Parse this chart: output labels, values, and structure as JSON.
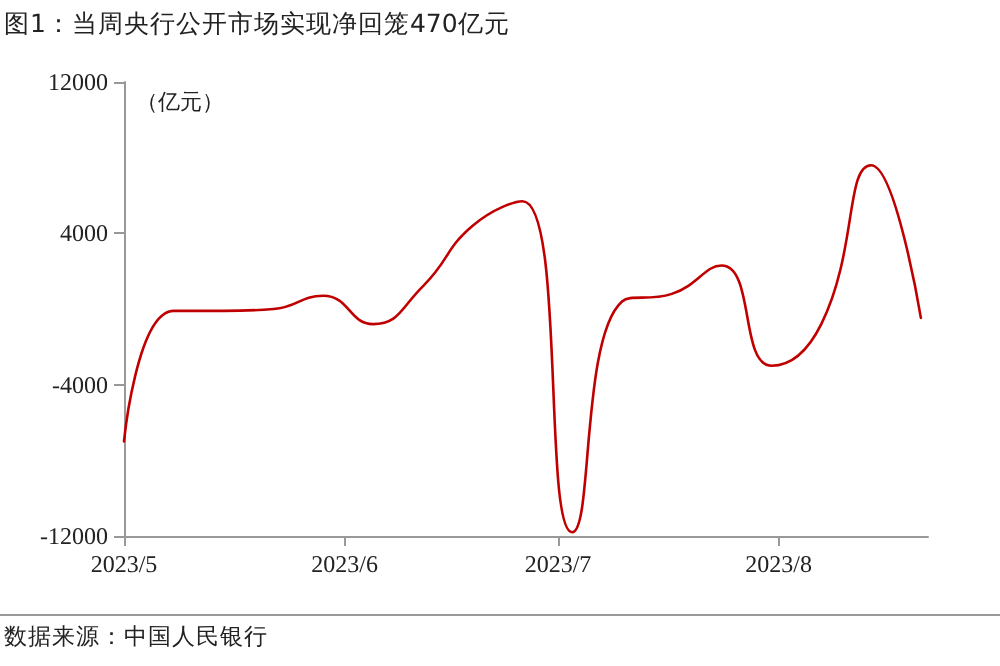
{
  "chart_data": {
    "type": "line",
    "title": "图1：当周央行公开市场实现净回笼470亿元",
    "ylabel": "（亿元）",
    "annotations": [
      "数据来源：中国人民银行"
    ],
    "x": [
      "2023-05-05",
      "2023-05-12",
      "2023-05-19",
      "2023-05-26",
      "2023-06-02",
      "2023-06-09",
      "2023-06-16",
      "2023-06-23",
      "2023-06-30",
      "2023-07-07",
      "2023-07-14",
      "2023-07-21",
      "2023-07-28",
      "2023-08-04",
      "2023-08-11",
      "2023-08-18",
      "2023-08-25"
    ],
    "series": [
      {
        "color": "#c00000",
        "values": [
          -7000,
          -100,
          -100,
          0,
          700,
          -800,
          1200,
          4400,
          5700,
          -11800,
          400,
          800,
          2300,
          -3000,
          -800,
          7600,
          -470
        ]
      }
    ],
    "xlim": [
      "2023-05-05",
      "2023-08-26"
    ],
    "xticks": [
      {
        "value": "2023-05-05",
        "label": "2023/5"
      },
      {
        "value": "2023-06-05",
        "label": "2023/6"
      },
      {
        "value": "2023-07-05",
        "label": "2023/7"
      },
      {
        "value": "2023-08-05",
        "label": "2023/8"
      }
    ],
    "ylim": [
      -12000,
      12000
    ],
    "yticks": [
      -12000,
      -4000,
      4000,
      12000
    ],
    "marker": "none",
    "line_style": "solid"
  }
}
